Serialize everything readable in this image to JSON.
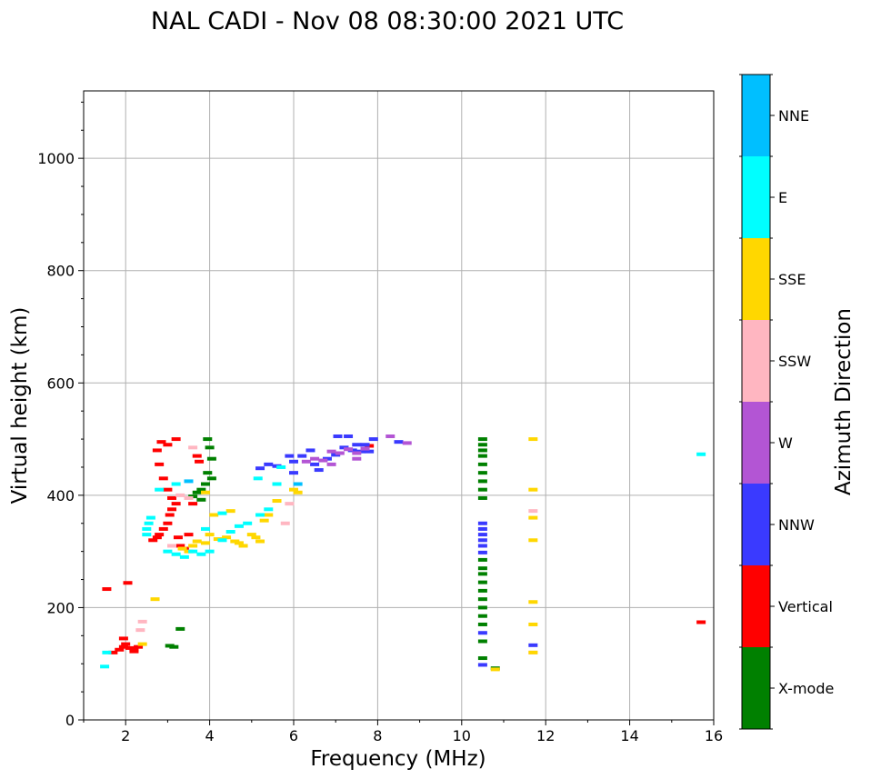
{
  "chart_data": {
    "type": "scatter",
    "title": "NAL CADI - Nov 08 08:30:00 2021 UTC",
    "xlabel": "Frequency (MHz)",
    "ylabel": "Virtual height (km)",
    "xlim": [
      1,
      16
    ],
    "ylim": [
      0,
      1120
    ],
    "xticks": [
      2,
      4,
      6,
      8,
      10,
      12,
      14,
      16
    ],
    "yticks": [
      0,
      200,
      400,
      600,
      800,
      1000
    ],
    "grid": true,
    "colorbar": {
      "label": "Azimuth Direction",
      "categories": [
        {
          "name": "X-mode",
          "color": "#008000"
        },
        {
          "name": "Vertical",
          "color": "#ff0000"
        },
        {
          "name": "NNW",
          "color": "#3a3aff"
        },
        {
          "name": "W",
          "color": "#b355d4"
        },
        {
          "name": "SSW",
          "color": "#ffb6c1"
        },
        {
          "name": "SSE",
          "color": "#ffd700"
        },
        {
          "name": "E",
          "color": "#00ffff"
        },
        {
          "name": "NNE",
          "color": "#00bfff"
        }
      ]
    },
    "series": [
      {
        "name": "X-mode",
        "points": [
          [
            3.3,
            162
          ],
          [
            3.05,
            132
          ],
          [
            3.15,
            130
          ],
          [
            3.6,
            398
          ],
          [
            3.7,
            405
          ],
          [
            3.8,
            410
          ],
          [
            3.9,
            420
          ],
          [
            3.95,
            440
          ],
          [
            4.05,
            430
          ],
          [
            4.05,
            465
          ],
          [
            4.0,
            485
          ],
          [
            3.95,
            500
          ],
          [
            3.8,
            392
          ],
          [
            10.5,
            500
          ],
          [
            10.5,
            490
          ],
          [
            10.5,
            480
          ],
          [
            10.5,
            470
          ],
          [
            10.5,
            455
          ],
          [
            10.5,
            440
          ],
          [
            10.5,
            425
          ],
          [
            10.5,
            410
          ],
          [
            10.5,
            395
          ],
          [
            10.5,
            285
          ],
          [
            10.5,
            270
          ],
          [
            10.5,
            260
          ],
          [
            10.5,
            245
          ],
          [
            10.5,
            230
          ],
          [
            10.5,
            215
          ],
          [
            10.5,
            200
          ],
          [
            10.5,
            185
          ],
          [
            10.5,
            170
          ],
          [
            10.5,
            140
          ],
          [
            10.5,
            110
          ],
          [
            10.8,
            92
          ]
        ]
      },
      {
        "name": "Vertical",
        "points": [
          [
            1.55,
            233
          ],
          [
            2.05,
            244
          ],
          [
            1.7,
            120
          ],
          [
            1.85,
            125
          ],
          [
            1.95,
            130
          ],
          [
            2.0,
            135
          ],
          [
            2.1,
            128
          ],
          [
            2.2,
            125
          ],
          [
            2.3,
            130
          ],
          [
            2.2,
            122
          ],
          [
            1.95,
            145
          ],
          [
            2.65,
            320
          ],
          [
            2.75,
            325
          ],
          [
            2.8,
            330
          ],
          [
            2.9,
            340
          ],
          [
            3.0,
            350
          ],
          [
            3.05,
            365
          ],
          [
            3.1,
            375
          ],
          [
            3.2,
            385
          ],
          [
            3.1,
            395
          ],
          [
            3.0,
            410
          ],
          [
            2.9,
            430
          ],
          [
            2.8,
            455
          ],
          [
            2.75,
            480
          ],
          [
            2.85,
            495
          ],
          [
            3.0,
            490
          ],
          [
            3.2,
            500
          ],
          [
            3.4,
            305
          ],
          [
            3.3,
            310
          ],
          [
            3.5,
            330
          ],
          [
            3.6,
            385
          ],
          [
            3.75,
            460
          ],
          [
            3.7,
            470
          ],
          [
            3.25,
            325
          ],
          [
            7.8,
            488
          ],
          [
            15.7,
            174
          ]
        ]
      },
      {
        "name": "NNW",
        "points": [
          [
            5.2,
            448
          ],
          [
            5.4,
            455
          ],
          [
            5.6,
            452
          ],
          [
            6.2,
            470
          ],
          [
            6.4,
            480
          ],
          [
            6.5,
            455
          ],
          [
            6.6,
            445
          ],
          [
            6.8,
            465
          ],
          [
            7.0,
            472
          ],
          [
            7.2,
            485
          ],
          [
            7.4,
            480
          ],
          [
            7.5,
            490
          ],
          [
            7.6,
            478
          ],
          [
            7.7,
            490
          ],
          [
            7.8,
            478
          ],
          [
            7.05,
            505
          ],
          [
            7.3,
            505
          ],
          [
            7.9,
            500
          ],
          [
            8.5,
            495
          ],
          [
            6.0,
            440
          ],
          [
            6.0,
            460
          ],
          [
            5.9,
            470
          ],
          [
            10.5,
            350
          ],
          [
            10.5,
            340
          ],
          [
            10.5,
            330
          ],
          [
            10.5,
            320
          ],
          [
            10.5,
            310
          ],
          [
            10.5,
            298
          ],
          [
            10.5,
            155
          ],
          [
            10.5,
            98
          ],
          [
            11.7,
            133
          ]
        ]
      },
      {
        "name": "W",
        "points": [
          [
            6.3,
            460
          ],
          [
            6.5,
            465
          ],
          [
            6.7,
            462
          ],
          [
            6.9,
            478
          ],
          [
            7.1,
            475
          ],
          [
            7.3,
            482
          ],
          [
            7.5,
            475
          ],
          [
            7.7,
            483
          ],
          [
            8.3,
            505
          ],
          [
            8.7,
            493
          ],
          [
            6.9,
            455
          ],
          [
            7.5,
            465
          ]
        ]
      },
      {
        "name": "SSW",
        "points": [
          [
            2.35,
            160
          ],
          [
            2.4,
            175
          ],
          [
            3.1,
            310
          ],
          [
            3.3,
            400
          ],
          [
            3.5,
            395
          ],
          [
            3.6,
            485
          ],
          [
            5.9,
            385
          ],
          [
            5.8,
            350
          ],
          [
            11.7,
            372
          ],
          [
            11.7,
            120
          ]
        ]
      },
      {
        "name": "SSE",
        "points": [
          [
            2.4,
            135
          ],
          [
            2.7,
            215
          ],
          [
            3.35,
            305
          ],
          [
            3.5,
            300
          ],
          [
            3.6,
            310
          ],
          [
            3.7,
            318
          ],
          [
            3.9,
            315
          ],
          [
            4.0,
            330
          ],
          [
            4.2,
            322
          ],
          [
            4.4,
            325
          ],
          [
            4.6,
            318
          ],
          [
            4.7,
            315
          ],
          [
            4.8,
            310
          ],
          [
            5.0,
            330
          ],
          [
            5.1,
            325
          ],
          [
            5.2,
            318
          ],
          [
            5.3,
            355
          ],
          [
            5.4,
            365
          ],
          [
            5.6,
            390
          ],
          [
            6.1,
            405
          ],
          [
            6.0,
            410
          ],
          [
            3.9,
            405
          ],
          [
            4.1,
            365
          ],
          [
            4.5,
            372
          ],
          [
            11.7,
            500
          ],
          [
            11.7,
            410
          ],
          [
            11.7,
            360
          ],
          [
            11.7,
            320
          ],
          [
            11.7,
            210
          ],
          [
            11.7,
            170
          ],
          [
            11.7,
            120
          ],
          [
            10.8,
            90
          ]
        ]
      },
      {
        "name": "E",
        "points": [
          [
            1.5,
            95
          ],
          [
            1.55,
            120
          ],
          [
            2.5,
            330
          ],
          [
            2.55,
            350
          ],
          [
            2.6,
            360
          ],
          [
            2.5,
            340
          ],
          [
            3.0,
            300
          ],
          [
            3.2,
            295
          ],
          [
            3.4,
            290
          ],
          [
            3.6,
            300
          ],
          [
            3.8,
            295
          ],
          [
            4.0,
            300
          ],
          [
            4.3,
            320
          ],
          [
            4.5,
            335
          ],
          [
            4.7,
            345
          ],
          [
            4.9,
            350
          ],
          [
            5.2,
            365
          ],
          [
            5.4,
            375
          ],
          [
            5.6,
            420
          ],
          [
            5.7,
            450
          ],
          [
            4.3,
            368
          ],
          [
            3.9,
            340
          ],
          [
            2.8,
            410
          ],
          [
            3.2,
            420
          ],
          [
            5.15,
            430
          ],
          [
            15.7,
            473
          ]
        ]
      },
      {
        "name": "NNE",
        "points": [
          [
            3.5,
            425
          ],
          [
            6.1,
            420
          ]
        ]
      }
    ]
  }
}
